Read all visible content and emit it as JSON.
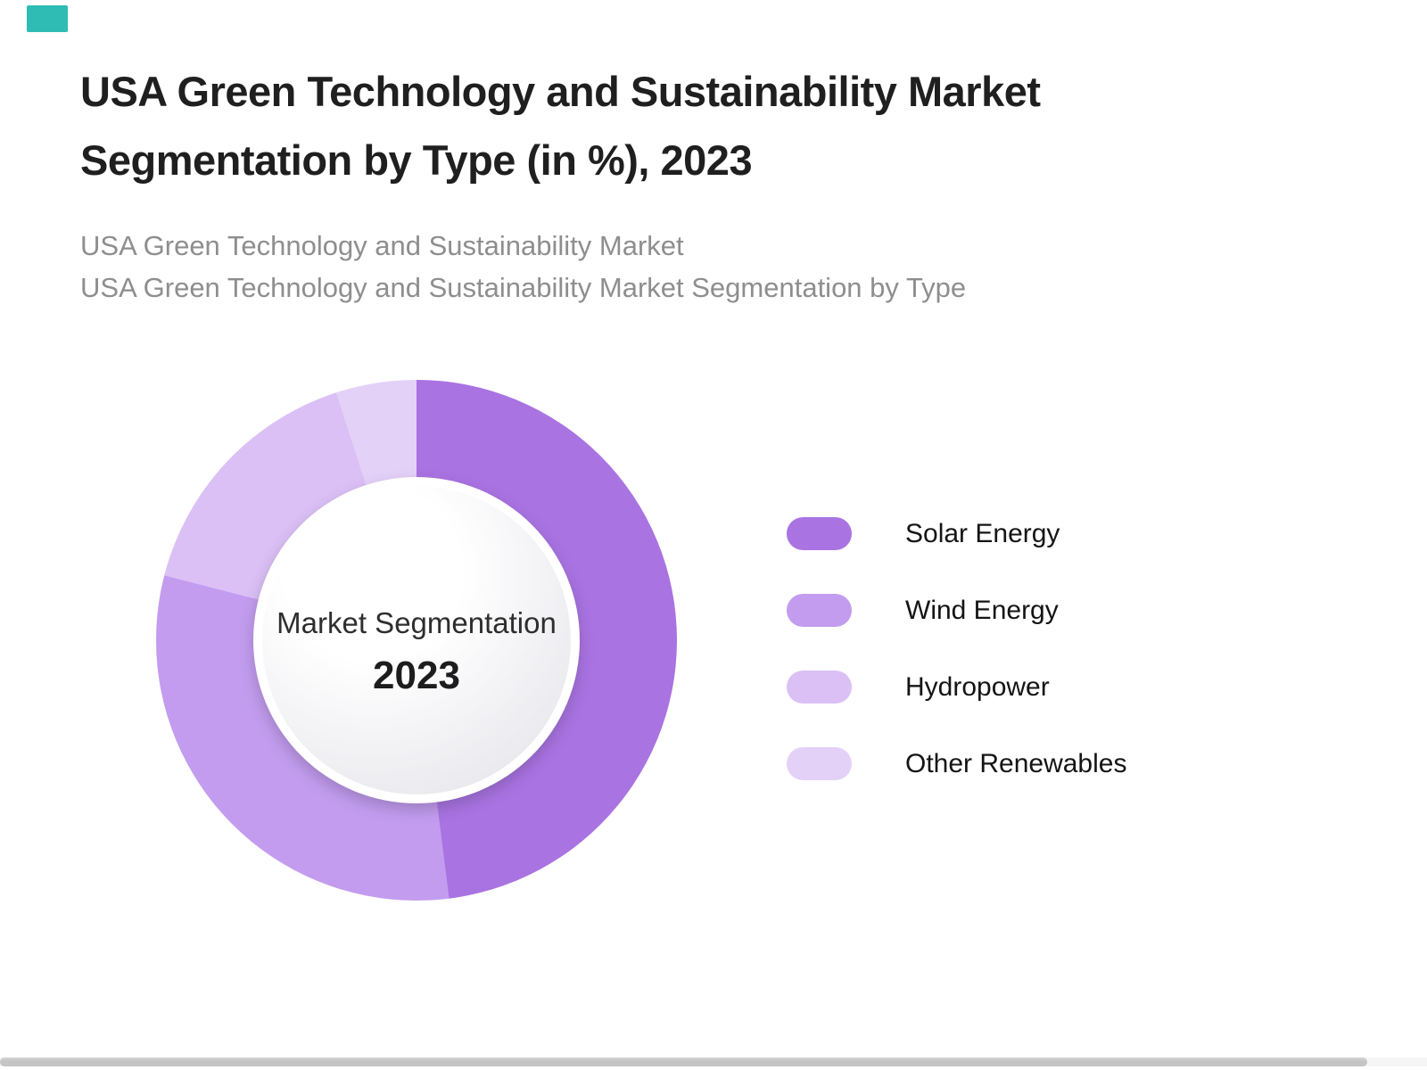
{
  "header": {
    "title_line1": "USA Green Technology and Sustainability Market",
    "title_line2": "Segmentation by Type (in %), 2023",
    "subtitle_line1": "USA Green Technology and Sustainability Market",
    "subtitle_line2": "USA Green Technology and Sustainability Market Segmentation by Type"
  },
  "decoration": {
    "corner_marker_color": "#2ebcb4"
  },
  "chart_data": {
    "type": "pie",
    "variant": "donut",
    "title": "USA Green Technology and Sustainability Market Segmentation by Type (in %), 2023",
    "center_label": "Market Segmentation",
    "center_year": "2023",
    "legend_position": "right",
    "start_angle_deg": 0,
    "direction": "clockwise",
    "unit": "%",
    "segments": [
      {
        "label": "Solar Energy",
        "value": 48,
        "color": "#a973e2"
      },
      {
        "label": "Wind Energy",
        "value": 31,
        "color": "#c39cef"
      },
      {
        "label": "Hydropower",
        "value": 16,
        "color": "#dbc0f5"
      },
      {
        "label": "Other Renewables",
        "value": 5,
        "color": "#e4d1f8"
      }
    ]
  }
}
